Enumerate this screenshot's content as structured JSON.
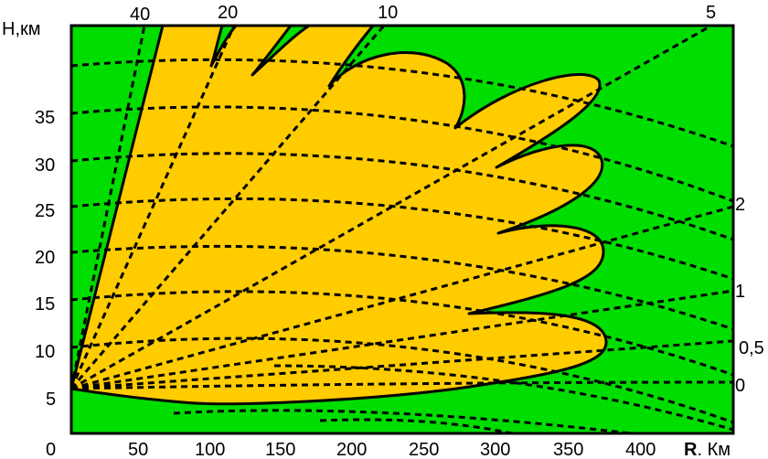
{
  "axes": {
    "y_label": "H,км",
    "x_label_bold": "R",
    "x_label_rest": ". Км",
    "origin_label": "0",
    "y_ticks": [
      "5",
      "10",
      "15",
      "20",
      "25",
      "30",
      "35"
    ],
    "x_ticks": [
      "50",
      "100",
      "150",
      "200",
      "250",
      "300",
      "350",
      "400"
    ]
  },
  "elevation_angle_labels_top": [
    "40",
    "20",
    "10",
    "5"
  ],
  "elevation_angle_labels_right": [
    "2",
    "1",
    "0,5",
    "0"
  ],
  "colors": {
    "background": "#00dd00",
    "coverage_zone": "#ffcc00",
    "outline": "#000000",
    "dashed_lines": "#000000"
  }
}
